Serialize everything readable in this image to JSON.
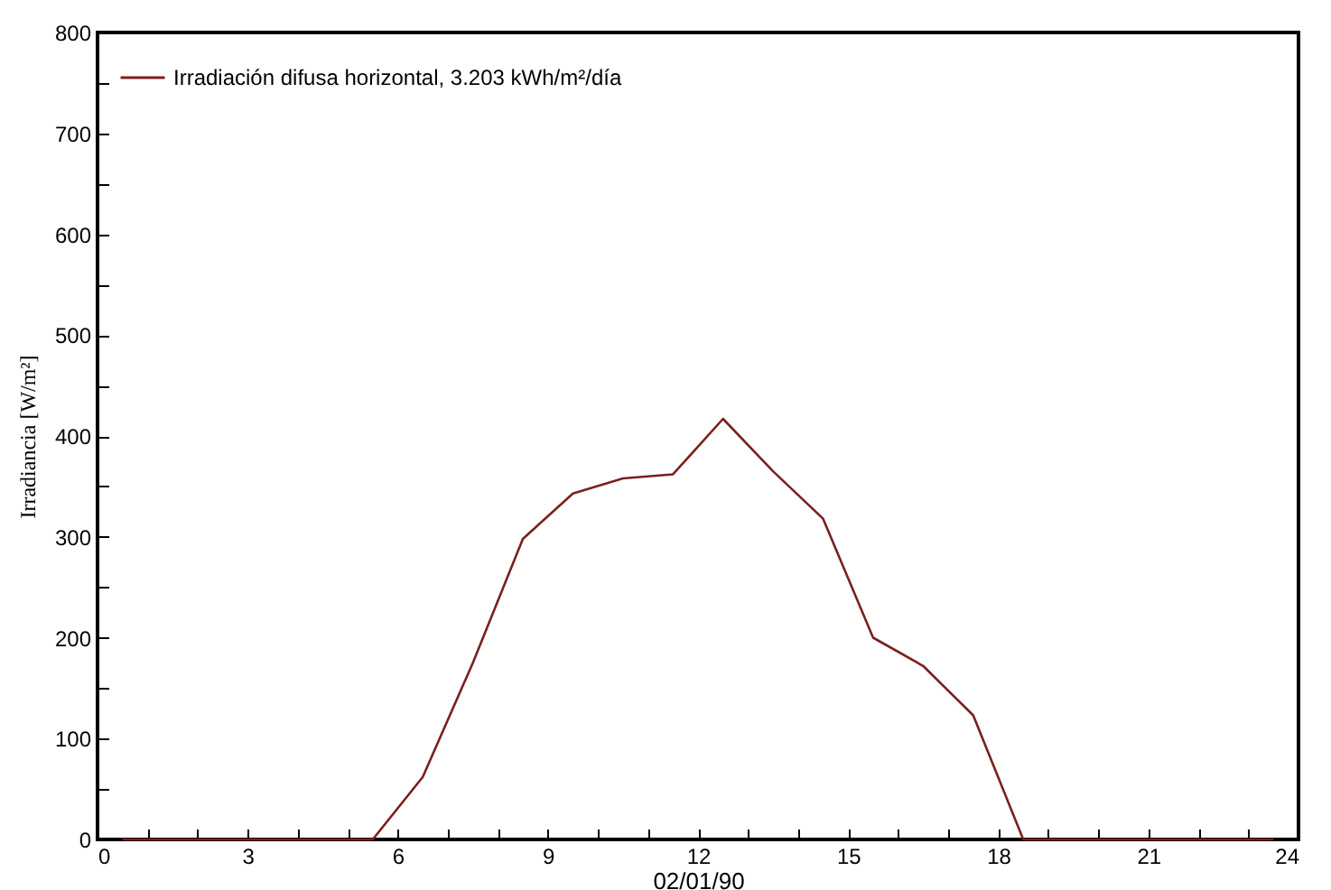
{
  "chart_data": {
    "type": "line",
    "xlabel": "02/01/90",
    "ylabel": "Irradiancia [W/m²]",
    "x": [
      0.5,
      1.5,
      2.5,
      3.5,
      4.5,
      5.5,
      6.5,
      7.5,
      8.5,
      9.5,
      10.5,
      11.5,
      12.5,
      13.5,
      14.5,
      15.5,
      16.5,
      17.5,
      18.5,
      19.5,
      20.5,
      21.5,
      22.5,
      23.5
    ],
    "series": [
      {
        "name": "Irradiación difusa horizontal,  3.203 kWh/m²/día",
        "color": "#7b1f1f",
        "values": [
          0,
          0,
          0,
          0,
          0,
          0,
          62,
          175,
          298,
          343,
          358,
          362,
          417,
          365,
          318,
          200,
          172,
          123,
          0,
          0,
          0,
          0,
          0,
          0
        ]
      }
    ],
    "xlim": [
      0,
      24
    ],
    "xticks": [
      0,
      {
        "value": 1,
        "label": null
      },
      {
        "value": 2,
        "label": null
      },
      3,
      {
        "value": 4,
        "label": null
      },
      {
        "value": 5,
        "label": null
      },
      6,
      {
        "value": 7,
        "label": null
      },
      {
        "value": 8,
        "label": null
      },
      9,
      {
        "value": 10,
        "label": null
      },
      {
        "value": 11,
        "label": null
      },
      12,
      {
        "value": 13,
        "label": null
      },
      {
        "value": 14,
        "label": null
      },
      15,
      {
        "value": 16,
        "label": null
      },
      {
        "value": 17,
        "label": null
      },
      18,
      {
        "value": 19,
        "label": null
      },
      {
        "value": 20,
        "label": null
      },
      21,
      {
        "value": 22,
        "label": null
      },
      {
        "value": 23,
        "label": null
      },
      24
    ],
    "ylim": [
      0,
      800
    ],
    "yticks": [
      0,
      {
        "value": 50,
        "label": null
      },
      100,
      {
        "value": 150,
        "label": null
      },
      200,
      {
        "value": 250,
        "label": null
      },
      300,
      {
        "value": 350,
        "label": null
      },
      400,
      {
        "value": 450,
        "label": null
      },
      500,
      {
        "value": 550,
        "label": null
      },
      600,
      {
        "value": 650,
        "label": null
      },
      700,
      {
        "value": 750,
        "label": null
      },
      800
    ],
    "grid": false,
    "legend": "top left",
    "marker": "none",
    "line_style": "solid"
  }
}
